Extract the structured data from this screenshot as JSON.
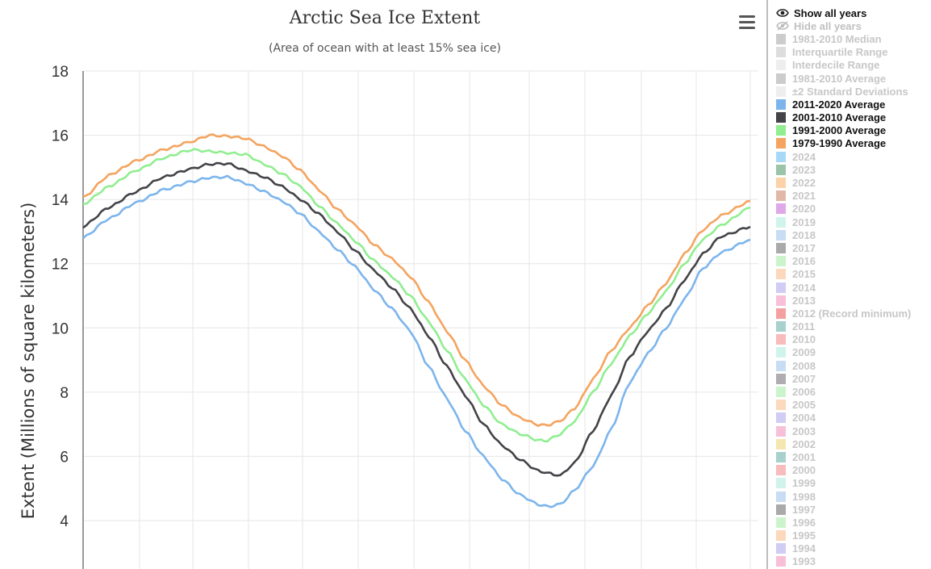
{
  "chart_data": {
    "type": "line",
    "title": "Arctic Sea Ice Extent",
    "subtitle": "(Area of ocean with at least 15% sea ice)",
    "ylabel": "Extent (Millions of square kilometers)",
    "xlabel": "",
    "ylim": [
      2.6,
      18
    ],
    "yticks": [
      4,
      6,
      8,
      10,
      12,
      14,
      16,
      18
    ],
    "x_unit": "day of year",
    "xlim": [
      1,
      366
    ],
    "grid": true,
    "legend_position": "right",
    "series": [
      {
        "name": "1979-1990 Average",
        "color": "#f4a460",
        "x": [
          1,
          15,
          30,
          45,
          60,
          70,
          80,
          90,
          100,
          110,
          120,
          130,
          140,
          150,
          160,
          170,
          180,
          190,
          200,
          210,
          220,
          230,
          240,
          250,
          255,
          262,
          270,
          280,
          290,
          300,
          310,
          320,
          330,
          340,
          350,
          366
        ],
        "y": [
          14.05,
          14.75,
          15.2,
          15.55,
          15.8,
          16.0,
          15.97,
          15.9,
          15.65,
          15.35,
          14.9,
          14.3,
          13.7,
          13.2,
          12.6,
          12.15,
          11.6,
          10.8,
          9.9,
          9.0,
          8.2,
          7.6,
          7.2,
          6.98,
          6.97,
          7.1,
          7.5,
          8.4,
          9.3,
          10.0,
          10.7,
          11.4,
          12.3,
          13.05,
          13.5,
          13.95
        ]
      },
      {
        "name": "1991-2000 Average",
        "color": "#90ee90",
        "x": [
          1,
          15,
          30,
          45,
          60,
          70,
          80,
          90,
          100,
          110,
          120,
          130,
          140,
          150,
          160,
          170,
          180,
          190,
          200,
          210,
          220,
          230,
          240,
          250,
          255,
          262,
          270,
          280,
          290,
          300,
          310,
          320,
          330,
          340,
          350,
          366
        ],
        "y": [
          13.85,
          14.4,
          14.9,
          15.3,
          15.55,
          15.5,
          15.45,
          15.4,
          15.1,
          14.8,
          14.4,
          13.8,
          13.25,
          12.7,
          12.1,
          11.6,
          11.0,
          10.2,
          9.3,
          8.4,
          7.6,
          7.0,
          6.7,
          6.5,
          6.5,
          6.7,
          7.1,
          8.0,
          8.9,
          9.75,
          10.45,
          11.15,
          12.0,
          12.75,
          13.2,
          13.75
        ]
      },
      {
        "name": "2001-2010 Average",
        "color": "#434348",
        "x": [
          1,
          15,
          30,
          45,
          60,
          70,
          80,
          90,
          100,
          110,
          120,
          130,
          140,
          150,
          160,
          170,
          180,
          190,
          200,
          210,
          220,
          230,
          240,
          250,
          255,
          262,
          270,
          280,
          290,
          300,
          310,
          320,
          330,
          340,
          350,
          366
        ],
        "y": [
          13.15,
          13.75,
          14.25,
          14.7,
          14.95,
          15.1,
          15.12,
          14.9,
          14.7,
          14.4,
          14.0,
          13.55,
          13.0,
          12.4,
          11.8,
          11.25,
          10.6,
          9.75,
          8.8,
          7.9,
          7.0,
          6.35,
          5.9,
          5.55,
          5.48,
          5.4,
          5.8,
          6.8,
          7.9,
          9.1,
          9.9,
          10.6,
          11.5,
          12.3,
          12.85,
          13.15
        ]
      },
      {
        "name": "2011-2020 Average",
        "color": "#7cb5ec",
        "x": [
          1,
          15,
          30,
          45,
          60,
          70,
          80,
          90,
          100,
          110,
          120,
          130,
          140,
          150,
          160,
          170,
          180,
          190,
          200,
          210,
          220,
          230,
          240,
          250,
          255,
          262,
          270,
          280,
          290,
          300,
          310,
          320,
          330,
          340,
          350,
          366
        ],
        "y": [
          12.8,
          13.4,
          13.9,
          14.3,
          14.55,
          14.68,
          14.7,
          14.5,
          14.25,
          13.95,
          13.55,
          13.0,
          12.45,
          11.9,
          11.2,
          10.6,
          9.9,
          8.8,
          7.8,
          6.8,
          6.0,
          5.3,
          4.8,
          4.5,
          4.43,
          4.5,
          4.95,
          5.7,
          6.85,
          8.3,
          9.2,
          10.0,
          10.9,
          11.85,
          12.35,
          12.75
        ]
      }
    ]
  },
  "legend": {
    "show_all": "Show all years",
    "hide_all": "Hide all years",
    "items": [
      {
        "label": "1981-2010 Median",
        "color": "#cccccc",
        "active": false
      },
      {
        "label": "Interquartile Range",
        "color": "#dddddd",
        "active": false
      },
      {
        "label": "Interdecile Range",
        "color": "#eeeeee",
        "active": false
      },
      {
        "label": "1981-2010 Average",
        "color": "#cccccc",
        "active": false
      },
      {
        "label": "±2 Standard Deviations",
        "color": "#eeeeee",
        "active": false
      },
      {
        "label": "2011-2020 Average",
        "color": "#7cb5ec",
        "active": true
      },
      {
        "label": "2001-2010 Average",
        "color": "#434348",
        "active": true
      },
      {
        "label": "1991-2000 Average",
        "color": "#90ee90",
        "active": true
      },
      {
        "label": "1979-1990 Average",
        "color": "#f4a460",
        "active": true
      },
      {
        "label": "2024",
        "color": "#a8d8f8",
        "active": false
      },
      {
        "label": "2023",
        "color": "#9cc4a8",
        "active": false
      },
      {
        "label": "2022",
        "color": "#fcd3a8",
        "active": false
      },
      {
        "label": "2021",
        "color": "#e0b8a8",
        "active": false
      },
      {
        "label": "2020",
        "color": "#e0a8e8",
        "active": false
      },
      {
        "label": "2019",
        "color": "#d0f4ec",
        "active": false
      },
      {
        "label": "2018",
        "color": "#c8dcf4",
        "active": false
      },
      {
        "label": "2017",
        "color": "#aaaaaa",
        "active": false
      },
      {
        "label": "2016",
        "color": "#ccf4cc",
        "active": false
      },
      {
        "label": "2015",
        "color": "#fcd8bc",
        "active": false
      },
      {
        "label": "2014",
        "color": "#d0ccf4",
        "active": false
      },
      {
        "label": "2013",
        "color": "#f8c0d8",
        "active": false
      },
      {
        "label": "2012 (Record minimum)",
        "color": "#f4a0a0",
        "active": false
      },
      {
        "label": "2011",
        "color": "#a8d0cc",
        "active": false
      },
      {
        "label": "2010",
        "color": "#f8bcbc",
        "active": false
      },
      {
        "label": "2009",
        "color": "#d0f4ec",
        "active": false
      },
      {
        "label": "2008",
        "color": "#c8dcf4",
        "active": false
      },
      {
        "label": "2007",
        "color": "#b0acb0",
        "active": false
      },
      {
        "label": "2006",
        "color": "#ccf4cc",
        "active": false
      },
      {
        "label": "2005",
        "color": "#fcd8bc",
        "active": false
      },
      {
        "label": "2004",
        "color": "#d0ccf4",
        "active": false
      },
      {
        "label": "2003",
        "color": "#f8c0d8",
        "active": false
      },
      {
        "label": "2002",
        "color": "#f4e8b0",
        "active": false
      },
      {
        "label": "2001",
        "color": "#a8d0cc",
        "active": false
      },
      {
        "label": "2000",
        "color": "#f8bcbc",
        "active": false
      },
      {
        "label": "1999",
        "color": "#d0f4ec",
        "active": false
      },
      {
        "label": "1998",
        "color": "#c8dcf4",
        "active": false
      },
      {
        "label": "1997",
        "color": "#aaaaaa",
        "active": false
      },
      {
        "label": "1996",
        "color": "#ccf4cc",
        "active": false
      },
      {
        "label": "1995",
        "color": "#fcd8bc",
        "active": false
      },
      {
        "label": "1994",
        "color": "#d0ccf4",
        "active": false
      },
      {
        "label": "1993",
        "color": "#f8c0d8",
        "active": false
      }
    ]
  },
  "icons": {
    "menu": "hamburger-menu-icon",
    "show": "eye-icon",
    "hide": "eye-slash-icon"
  }
}
